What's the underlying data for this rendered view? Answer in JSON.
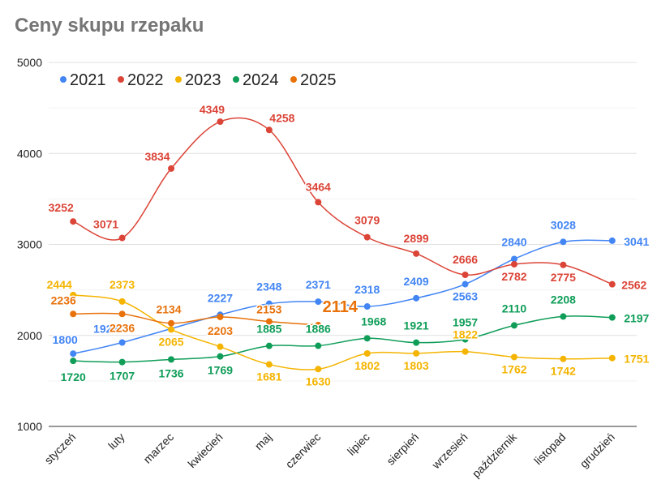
{
  "chart_data": {
    "type": "line",
    "title": "Ceny skupu rzepaku",
    "xlabel": "",
    "ylabel": "",
    "ylim": [
      1000,
      5000
    ],
    "yticks": [
      1000,
      2000,
      3000,
      4000,
      5000
    ],
    "grid": true,
    "legend": "top-left",
    "categories": [
      "styczeń",
      "luty",
      "marzec",
      "kwiecień",
      "maj",
      "czerwiec",
      "lipiec",
      "sierpień",
      "wrzesień",
      "październik",
      "listopad",
      "grudzień"
    ],
    "series": [
      {
        "name": "2021",
        "color": "#4285f4",
        "values": [
          1800,
          1922,
          null,
          2227,
          2348,
          2371,
          2318,
          2409,
          2563,
          2840,
          3028,
          3041
        ]
      },
      {
        "name": "2022",
        "color": "#db4437",
        "values": [
          3252,
          3071,
          3834,
          4349,
          4258,
          3464,
          3079,
          2899,
          2666,
          2782,
          2775,
          2562
        ]
      },
      {
        "name": "2023",
        "color": "#f4b400",
        "values": [
          2444,
          2373,
          2065,
          1876,
          1681,
          1630,
          1802,
          1803,
          1822,
          1762,
          1742,
          1751
        ]
      },
      {
        "name": "2024",
        "color": "#0f9d58",
        "values": [
          1720,
          1707,
          1736,
          1769,
          1885,
          1886,
          1968,
          1921,
          1957,
          2110,
          2208,
          2197
        ]
      },
      {
        "name": "2025",
        "color": "#e8710a",
        "values": [
          2236,
          2236,
          2134,
          2203,
          2153,
          2114,
          null,
          null,
          null,
          null,
          null,
          null
        ]
      }
    ]
  }
}
